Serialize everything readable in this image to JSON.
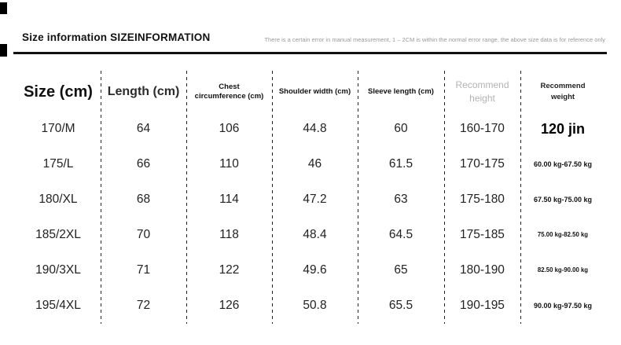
{
  "page": {
    "title": "Size information SIZEINFORMATION",
    "disclaimer": "There is a certain error in manual measurement, 1 – 2CM is within the normal error range, the above size data is for reference only"
  },
  "table": {
    "headers": [
      "Size (cm)",
      "Length (cm)",
      "Chest circumference (cm)",
      "Shoulder width (cm)",
      "Sleeve length (cm)",
      "Recommend height",
      "Recommend weight"
    ],
    "rows": [
      {
        "size": "170/M",
        "length": "64",
        "chest": "106",
        "shoulder": "44.8",
        "sleeve": "60",
        "height": "160-170",
        "weight": "120 jin"
      },
      {
        "size": "175/L",
        "length": "66",
        "chest": "110",
        "shoulder": "46",
        "sleeve": "61.5",
        "height": "170-175",
        "weight": "60.00 kg-67.50 kg"
      },
      {
        "size": "180/XL",
        "length": "68",
        "chest": "114",
        "shoulder": "47.2",
        "sleeve": "63",
        "height": "175-180",
        "weight": "67.50 kg-75.00 kg"
      },
      {
        "size": "185/2XL",
        "length": "70",
        "chest": "118",
        "shoulder": "48.4",
        "sleeve": "64.5",
        "height": "175-185",
        "weight": "75.00 kg-82.50 kg"
      },
      {
        "size": "190/3XL",
        "length": "71",
        "chest": "122",
        "shoulder": "49.6",
        "sleeve": "65",
        "height": "180-190",
        "weight": "82.50 kg-90.00 kg"
      },
      {
        "size": "195/4XL",
        "length": "72",
        "chest": "126",
        "shoulder": "50.8",
        "sleeve": "65.5",
        "height": "190-195",
        "weight": "90.00 kg-97.50 kg"
      }
    ]
  },
  "colors": {
    "text": "#1a1a1a",
    "muted_header": "#b3b3b3",
    "disclaimer": "#9a9a9a",
    "divider": "#111111"
  }
}
